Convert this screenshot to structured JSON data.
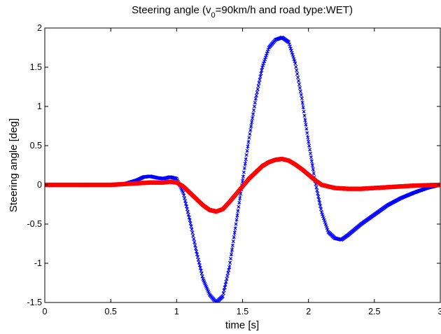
{
  "chart_data": {
    "type": "line",
    "title": {
      "prefix": "Steering angle (v",
      "subscript": "0",
      "suffix": "=90km/h and road type:WET)"
    },
    "xlabel": "time [s]",
    "ylabel": "Steering angle [deg]",
    "xlim": [
      0,
      3
    ],
    "ylim": [
      -1.5,
      2
    ],
    "xticks": [
      0,
      0.5,
      1,
      1.5,
      2,
      2.5,
      3
    ],
    "xtick_labels": [
      "0",
      "0.5",
      "1",
      "1.5",
      "2",
      "2.5",
      "3"
    ],
    "yticks": [
      -1.5,
      -1,
      -0.5,
      0,
      0.5,
      1,
      1.5,
      2
    ],
    "ytick_labels": [
      "-1.5",
      "-1",
      "-0.5",
      "0",
      "0.5",
      "1",
      "1.5",
      "2"
    ],
    "grid": false,
    "series": [
      {
        "color": "#0000ff",
        "marker": "x",
        "x": [
          0,
          0.5,
          0.6,
          0.7,
          0.75,
          0.8,
          0.85,
          0.9,
          0.95,
          1.0,
          1.05,
          1.1,
          1.15,
          1.2,
          1.25,
          1.3,
          1.35,
          1.4,
          1.45,
          1.5,
          1.55,
          1.6,
          1.65,
          1.7,
          1.75,
          1.8,
          1.85,
          1.9,
          1.95,
          2.0,
          2.05,
          2.1,
          2.15,
          2.2,
          2.25,
          2.3,
          2.4,
          2.5,
          2.6,
          2.7,
          2.8,
          2.9,
          3.0
        ],
        "y": [
          0,
          0,
          0.01,
          0.06,
          0.1,
          0.11,
          0.09,
          0.08,
          0.1,
          0.08,
          -0.1,
          -0.45,
          -0.85,
          -1.2,
          -1.4,
          -1.5,
          -1.42,
          -1.05,
          -0.5,
          0.05,
          0.6,
          1.1,
          1.5,
          1.75,
          1.85,
          1.88,
          1.82,
          1.55,
          1.1,
          0.55,
          0.05,
          -0.35,
          -0.6,
          -0.68,
          -0.7,
          -0.64,
          -0.5,
          -0.38,
          -0.26,
          -0.17,
          -0.1,
          -0.04,
          0
        ]
      },
      {
        "color": "#ff0000",
        "marker": "o",
        "x": [
          0,
          0.5,
          0.6,
          0.7,
          0.8,
          0.9,
          0.95,
          1.0,
          1.05,
          1.1,
          1.15,
          1.2,
          1.25,
          1.3,
          1.35,
          1.4,
          1.45,
          1.5,
          1.55,
          1.6,
          1.65,
          1.7,
          1.75,
          1.8,
          1.85,
          1.9,
          1.95,
          2.0,
          2.05,
          2.1,
          2.2,
          2.3,
          2.4,
          2.5,
          2.6,
          2.7,
          2.8,
          2.9,
          3.0
        ],
        "y": [
          0,
          0,
          0.01,
          0.02,
          0.03,
          0.03,
          0.04,
          0.03,
          -0.02,
          -0.1,
          -0.18,
          -0.26,
          -0.32,
          -0.34,
          -0.31,
          -0.22,
          -0.12,
          -0.02,
          0.08,
          0.16,
          0.24,
          0.29,
          0.32,
          0.33,
          0.31,
          0.26,
          0.2,
          0.13,
          0.06,
          0.0,
          -0.04,
          -0.05,
          -0.05,
          -0.04,
          -0.03,
          -0.02,
          -0.01,
          -0.005,
          0
        ]
      }
    ]
  }
}
